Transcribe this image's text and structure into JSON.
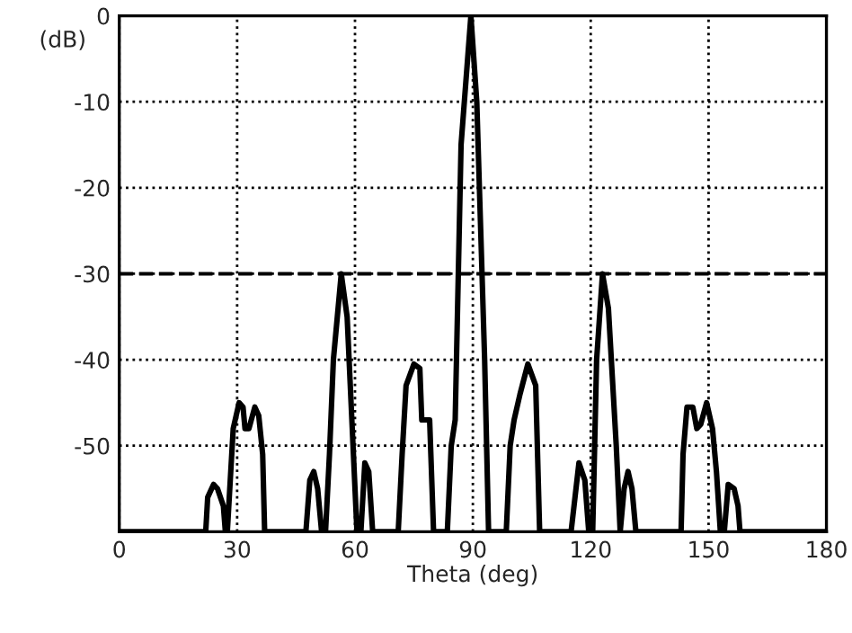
{
  "chart_data": {
    "type": "line",
    "xlabel": "Theta (deg)",
    "ylabel": "(dB)",
    "xlim": [
      0,
      180
    ],
    "xticks": [
      0,
      30,
      60,
      90,
      120,
      150,
      180
    ],
    "ylim": [
      -60,
      0
    ],
    "yticks": [
      {
        "value": -60,
        "label": null
      },
      {
        "value": -50,
        "label": "-50"
      },
      {
        "value": -40,
        "label": "-40"
      },
      {
        "value": -30,
        "label": "-30"
      },
      {
        "value": -20,
        "label": "-20"
      },
      {
        "value": -10,
        "label": "-10"
      },
      0
    ],
    "grid": true,
    "marker": "none",
    "line_style": "solid",
    "series": [
      {
        "color": "#000000",
        "x": [
          0,
          22,
          22.5,
          24,
          25,
          26.5,
          27,
          27.5,
          28,
          29,
          30.5,
          31.5,
          32,
          33,
          34.5,
          35.5,
          36.5,
          37,
          47.5,
          48.5,
          49.5,
          50.5,
          51.5,
          52.5,
          53.5,
          54.5,
          56.5,
          58,
          59.5,
          60.5,
          61.5,
          62.5,
          63.5,
          64.5,
          65.5,
          71,
          72,
          73,
          75,
          76.5,
          77,
          79,
          80,
          81,
          83.5,
          84.5,
          85.5,
          87,
          89.5,
          91,
          93,
          94,
          95,
          98.5,
          99.5,
          100.5,
          102,
          104,
          106,
          107,
          108,
          115,
          116,
          117,
          118.5,
          119.5,
          120.5,
          121.5,
          123,
          124.5,
          126.5,
          127.5,
          128.5,
          129.5,
          130.5,
          131.5,
          143,
          143.5,
          144.5,
          146,
          147,
          148,
          149.5,
          151,
          152,
          153,
          154,
          155,
          156.5,
          157.5,
          158,
          180
        ],
        "values": [
          -60,
          -60,
          -56,
          -54.5,
          -55,
          -57,
          -60,
          -60,
          -56,
          -48,
          -45,
          -45.5,
          -48,
          -48,
          -45.5,
          -46.5,
          -51,
          -60,
          -60,
          -54,
          -53,
          -55,
          -60,
          -60,
          -51,
          -40,
          -30,
          -35,
          -50,
          -60,
          -60,
          -52,
          -53,
          -60,
          -60,
          -60,
          -51,
          -43,
          -40.5,
          -41,
          -47,
          -47,
          -60,
          -60,
          -60,
          -50,
          -47,
          -15,
          0,
          -10,
          -40,
          -60,
          -60,
          -60,
          -50,
          -47,
          -44,
          -40.5,
          -43,
          -60,
          -60,
          -60,
          -56,
          -52,
          -54,
          -60,
          -60,
          -40,
          -30,
          -34,
          -50,
          -60,
          -55,
          -53,
          -55,
          -60,
          -60,
          -51,
          -45.5,
          -45.5,
          -48,
          -47.5,
          -45,
          -48,
          -53,
          -60,
          -60,
          -54.5,
          -55,
          -57,
          -60,
          -60
        ]
      }
    ],
    "ref_lines": [
      {
        "axis": "y",
        "value": -30,
        "label": null,
        "color": "#000000",
        "line_style": "dashed"
      }
    ]
  }
}
